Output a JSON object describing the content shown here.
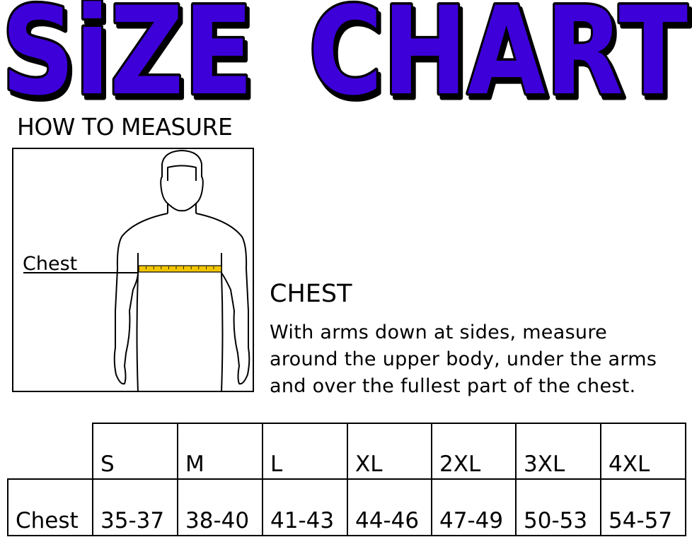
{
  "title": {
    "word1": "SiZE",
    "word2": "CHART",
    "fill_color": "#3D00D9",
    "outline_color": "#000000"
  },
  "how_to_measure": {
    "heading": "HOW TO MEASURE",
    "figure_label": "Chest",
    "tape_color": "#F2C500"
  },
  "instructions": {
    "heading": "CHEST",
    "lines": [
      "With arms down at sides, measure",
      "around the upper body, under the arms",
      "and over the fullest part of the chest."
    ]
  },
  "size_table": {
    "row_label": "Chest",
    "sizes": [
      "S",
      "M",
      "L",
      "XL",
      "2XL",
      "3XL",
      "4XL"
    ],
    "chest": [
      "35-37",
      "38-40",
      "41-43",
      "44-46",
      "47-49",
      "50-53",
      "54-57"
    ]
  }
}
